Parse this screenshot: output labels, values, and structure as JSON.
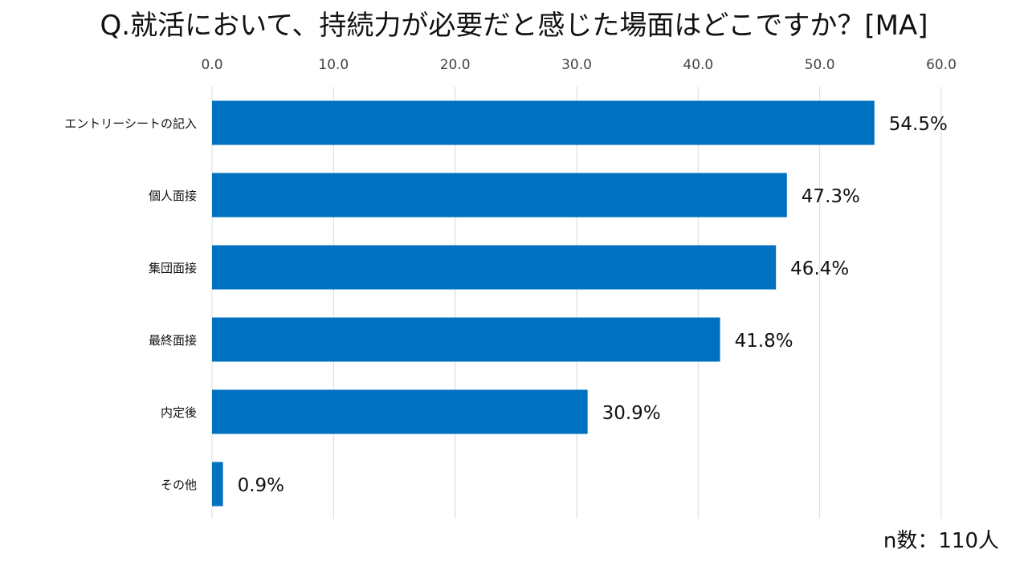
{
  "title": "Q.就活において、持続力が必要だと感じた場面はどこですか？[MA]",
  "footnote": "n数：110人",
  "colors": {
    "bar": "#0070c0",
    "grid": "#d9d9d9",
    "text": "#111111"
  },
  "chart_data": {
    "type": "bar",
    "orientation": "horizontal",
    "categories": [
      "エントリーシートの記入",
      "個人面接",
      "集団面接",
      "最終面接",
      "内定後",
      "その他"
    ],
    "values": [
      54.5,
      47.3,
      46.4,
      41.8,
      30.9,
      0.9
    ],
    "value_labels": [
      "54.5%",
      "47.3%",
      "46.4%",
      "41.8%",
      "30.9%",
      "0.9%"
    ],
    "xlim": [
      0,
      60
    ],
    "xticks": [
      0,
      10,
      20,
      30,
      40,
      50,
      60
    ],
    "xtick_labels": [
      "0.0",
      "10.0",
      "20.0",
      "30.0",
      "40.0",
      "50.0",
      "60.0"
    ],
    "xaxis_position": "top",
    "grid": true,
    "legend": "none"
  }
}
